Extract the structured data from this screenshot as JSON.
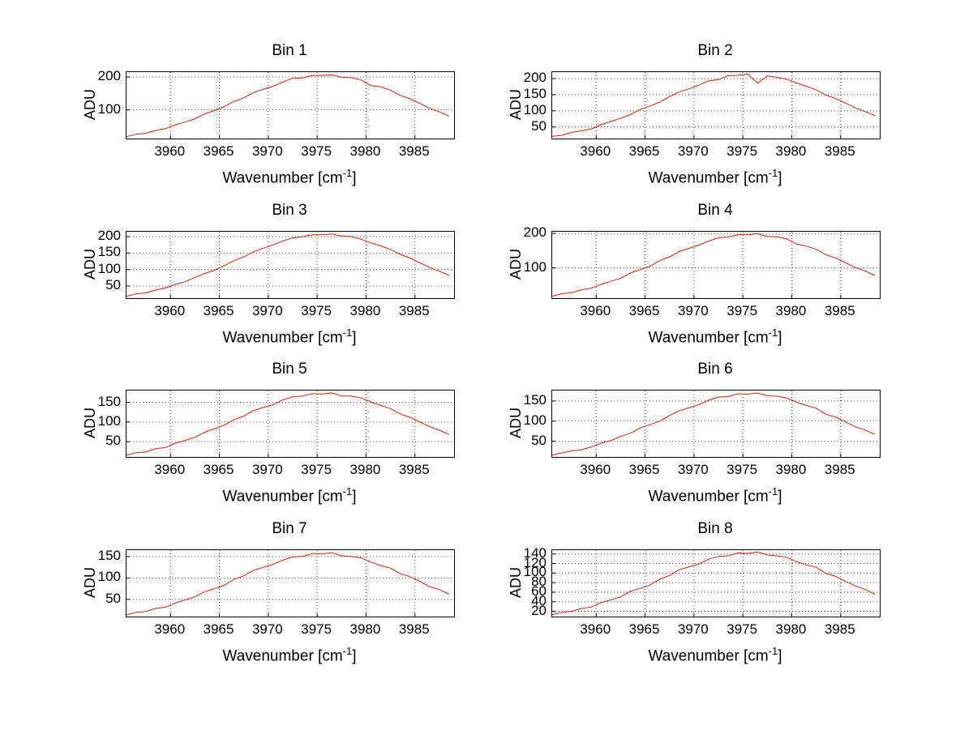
{
  "figure": {
    "background": "#ffffff",
    "text_color": "#000000"
  },
  "labels": {
    "ylabel": "ADU",
    "xlabel_main": "Wavenumber [cm",
    "xlabel_sup": "-1",
    "xlabel_close": "]"
  },
  "chart_common": {
    "type": "line",
    "xlabel": "Wavenumber [cm^-1]",
    "ylabel": "ADU",
    "xlim": [
      3955.5,
      3989
    ],
    "x_ticks": [
      3960,
      3965,
      3970,
      3975,
      3980,
      3985
    ],
    "grid": "dotted",
    "legend": "none",
    "line_color": "#cc2200",
    "x_values": [
      3955.5,
      3956.5,
      3957.5,
      3958.5,
      3959.5,
      3960.5,
      3961.5,
      3962.5,
      3963.5,
      3964.5,
      3965.5,
      3966.5,
      3967.5,
      3968.5,
      3969.5,
      3970.5,
      3971.5,
      3972.5,
      3973.5,
      3974.5,
      3975.5,
      3976.5,
      3977.5,
      3978.5,
      3979.5,
      3980.5,
      3981.5,
      3982.5,
      3983.5,
      3984.5,
      3985.5,
      3986.5,
      3987.5,
      3988.5
    ]
  },
  "chart_data": [
    {
      "type": "line",
      "title": "Bin 1",
      "ylabel": "ADU",
      "xlabel": "Wavenumber [cm^-1]",
      "y_ticks": [
        100,
        200
      ],
      "ylim": [
        13,
        215
      ],
      "values": [
        19,
        26,
        29,
        38,
        43,
        55,
        63,
        73,
        88,
        98,
        110,
        126,
        137,
        153,
        163,
        172,
        185,
        196,
        197,
        205,
        205,
        207,
        199,
        198,
        191,
        174,
        170,
        160,
        144,
        134,
        120,
        105,
        94,
        81
      ]
    },
    {
      "type": "line",
      "title": "Bin 2",
      "ylabel": "ADU",
      "xlabel": "Wavenumber [cm^-1]",
      "y_ticks": [
        50,
        100,
        150,
        200
      ],
      "ylim": [
        14,
        220
      ],
      "values": [
        21,
        24,
        33,
        38,
        44,
        57,
        67,
        77,
        88,
        104,
        115,
        127,
        144,
        159,
        168,
        180,
        193,
        197,
        209,
        210,
        214,
        186,
        208,
        204,
        198,
        186,
        176,
        165,
        149,
        138,
        124,
        109,
        98,
        85
      ]
    },
    {
      "type": "line",
      "title": "Bin 3",
      "ylabel": "ADU",
      "xlabel": "Wavenumber [cm^-1]",
      "y_ticks": [
        50,
        100,
        150,
        200
      ],
      "ylim": [
        13,
        215
      ],
      "values": [
        19,
        26,
        29,
        38,
        44,
        55,
        63,
        76,
        88,
        98,
        112,
        127,
        139,
        154,
        165,
        175,
        187,
        196,
        200,
        206,
        206,
        208,
        202,
        200,
        192,
        181,
        172,
        161,
        146,
        135,
        121,
        106,
        95,
        82
      ]
    },
    {
      "type": "line",
      "title": "Bin 4",
      "ylabel": "ADU",
      "xlabel": "Wavenumber [cm^-1]",
      "y_ticks": [
        100,
        200
      ],
      "ylim": [
        12,
        205
      ],
      "values": [
        18,
        25,
        28,
        36,
        41,
        52,
        61,
        70,
        85,
        95,
        105,
        121,
        132,
        147,
        157,
        166,
        178,
        187,
        190,
        196,
        196,
        199,
        191,
        190,
        184,
        169,
        163,
        154,
        138,
        129,
        115,
        101,
        91,
        78
      ]
    },
    {
      "type": "line",
      "title": "Bin 5",
      "ylabel": "ADU",
      "xlabel": "Wavenumber [cm^-1]",
      "y_ticks": [
        50,
        100,
        150
      ],
      "ylim": [
        11,
        180
      ],
      "values": [
        16,
        22,
        24,
        32,
        35,
        46,
        53,
        61,
        74,
        83,
        92,
        106,
        115,
        129,
        137,
        144,
        156,
        164,
        166,
        172,
        171,
        174,
        166,
        166,
        161,
        151,
        142,
        134,
        120,
        112,
        100,
        88,
        79,
        68
      ]
    },
    {
      "type": "line",
      "title": "Bin 6",
      "ylabel": "ADU",
      "xlabel": "Wavenumber [cm^-1]",
      "y_ticks": [
        50,
        100,
        150
      ],
      "ylim": [
        11,
        176
      ],
      "values": [
        16,
        21,
        26,
        29,
        36,
        45,
        52,
        62,
        70,
        83,
        91,
        100,
        114,
        126,
        133,
        141,
        152,
        160,
        161,
        168,
        167,
        170,
        163,
        162,
        157,
        147,
        139,
        132,
        117,
        110,
        98,
        86,
        78,
        67
      ]
    },
    {
      "type": "line",
      "title": "Bin 7",
      "ylabel": "ADU",
      "xlabel": "Wavenumber [cm^-1]",
      "y_ticks": [
        50,
        100,
        150
      ],
      "ylim": [
        10,
        165
      ],
      "values": [
        14,
        20,
        22,
        29,
        32,
        42,
        49,
        56,
        68,
        75,
        83,
        97,
        105,
        118,
        125,
        132,
        142,
        149,
        150,
        157,
        156,
        159,
        152,
        150,
        147,
        137,
        129,
        123,
        110,
        103,
        92,
        80,
        73,
        62
      ]
    },
    {
      "type": "line",
      "title": "Bin 8",
      "ylabel": "ADU",
      "xlabel": "Wavenumber [cm^-1]",
      "y_ticks": [
        20,
        40,
        60,
        80,
        100,
        120,
        140
      ],
      "ylim": [
        9,
        148
      ],
      "values": [
        13,
        18,
        20,
        26,
        29,
        38,
        44,
        50,
        62,
        68,
        75,
        87,
        95,
        107,
        113,
        119,
        129,
        135,
        136,
        142,
        141,
        144,
        138,
        136,
        133,
        124,
        117,
        112,
        99,
        93,
        83,
        73,
        66,
        56
      ]
    }
  ]
}
